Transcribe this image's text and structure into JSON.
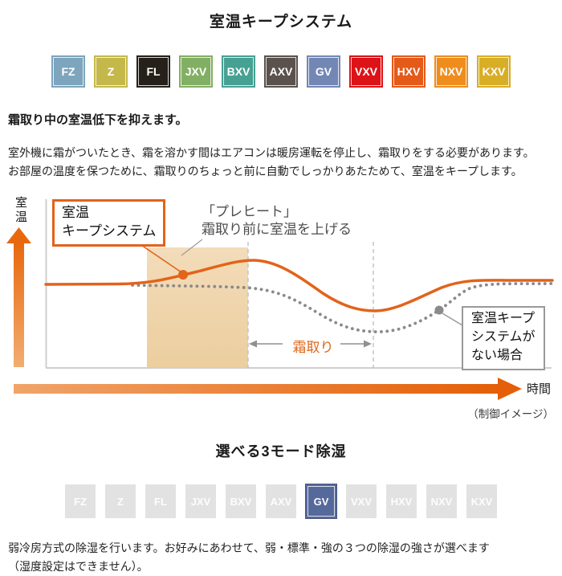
{
  "section1": {
    "title": "室温キープシステム",
    "models": [
      {
        "label": "FZ",
        "color": "#7da5bd"
      },
      {
        "label": "Z",
        "color": "#c5b84a"
      },
      {
        "label": "FL",
        "color": "#25201a"
      },
      {
        "label": "JXV",
        "color": "#82af64"
      },
      {
        "label": "BXV",
        "color": "#47a193"
      },
      {
        "label": "AXV",
        "color": "#5b524e"
      },
      {
        "label": "GV",
        "color": "#7287b4"
      },
      {
        "label": "VXV",
        "color": "#dc1317"
      },
      {
        "label": "HXV",
        "color": "#e45a19"
      },
      {
        "label": "NXV",
        "color": "#ee8d1e"
      },
      {
        "label": "KXV",
        "color": "#d9ae27"
      }
    ],
    "heading": "霜取り中の室温低下を抑えます。",
    "body_line1": "室外機に霜がついたとき、霜を溶かす間はエアコンは暖房運転を停止し、霜取りをする必要があります。",
    "body_line2": "お部屋の温度を保つために、霜取りのちょっと前に自動でしっかりあたためて、室温をキープします。"
  },
  "chart": {
    "y_axis_label": "室温",
    "x_axis_label": "時間",
    "keep_box_line1": "室温",
    "keep_box_line2": "キープシステム",
    "preheat_line1": "「プレヒート」",
    "preheat_line2": "霜取り前に室温を上げる",
    "defrost_label": "霜取り",
    "no_system_line1": "室温キープ",
    "no_system_line2": "システムが",
    "no_system_line3": "ない場合",
    "caption": "（制御イメージ）",
    "colors": {
      "accent_orange": "#e2631a",
      "preheat_band": "#eed2a4",
      "dotted_gray": "#8a8a8a",
      "axis_gray": "#cfcfcf"
    }
  },
  "chart_data": {
    "type": "line",
    "title": "室温キープシステム（制御イメージ）",
    "xlabel": "時間",
    "ylabel": "室温",
    "axes_numeric": false,
    "series": [
      {
        "name": "室温キープシステム",
        "style": "solid orange",
        "points_norm": [
          [
            0.0,
            0.5
          ],
          [
            0.15,
            0.5
          ],
          [
            0.28,
            0.55
          ],
          [
            0.41,
            0.64
          ],
          [
            0.52,
            0.5
          ],
          [
            0.65,
            0.34
          ],
          [
            0.78,
            0.48
          ],
          [
            0.9,
            0.52
          ],
          [
            1.0,
            0.52
          ]
        ]
      },
      {
        "name": "室温キープシステムがない場合",
        "style": "dotted gray",
        "points_norm": [
          [
            0.17,
            0.49
          ],
          [
            0.39,
            0.48
          ],
          [
            0.54,
            0.31
          ],
          [
            0.66,
            0.21
          ],
          [
            0.78,
            0.34
          ],
          [
            0.86,
            0.47
          ],
          [
            1.0,
            0.5
          ]
        ]
      }
    ],
    "annotations": [
      "プレヒート帯（霜取り前に室温を上げる）",
      "霜取り区間（2本の破線の間）"
    ]
  },
  "section2": {
    "title": "選べる3モード除湿",
    "models": [
      {
        "label": "FZ",
        "color": "#e2e2e2",
        "active": false
      },
      {
        "label": "Z",
        "color": "#e2e2e2",
        "active": false
      },
      {
        "label": "FL",
        "color": "#e2e2e2",
        "active": false
      },
      {
        "label": "JXV",
        "color": "#e2e2e2",
        "active": false
      },
      {
        "label": "BXV",
        "color": "#e2e2e2",
        "active": false
      },
      {
        "label": "AXV",
        "color": "#e2e2e2",
        "active": false
      },
      {
        "label": "GV",
        "color": "#56699b",
        "active": true
      },
      {
        "label": "VXV",
        "color": "#e2e2e2",
        "active": false
      },
      {
        "label": "HXV",
        "color": "#e2e2e2",
        "active": false
      },
      {
        "label": "NXV",
        "color": "#e2e2e2",
        "active": false
      },
      {
        "label": "KXV",
        "color": "#e2e2e2",
        "active": false
      }
    ],
    "body_line1": "弱冷房方式の除湿を行います。お好みにあわせて、弱・標準・強の３つの除湿の強さが選べます",
    "body_line2": "（湿度設定はできません）。"
  }
}
